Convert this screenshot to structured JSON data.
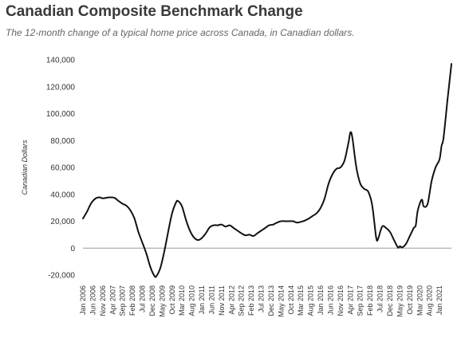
{
  "chart_data": {
    "type": "line",
    "title": "Canadian Composite Benchmark Change",
    "subtitle": "The 12-month change of a typical home price across Canada, in Canadian dollars.",
    "xlabel": "",
    "ylabel": "Canadian Dollars",
    "ylim": [
      -20000,
      140000
    ],
    "yticks": [
      -20000,
      0,
      20000,
      40000,
      60000,
      80000,
      100000,
      120000,
      140000
    ],
    "ytick_labels": [
      "-20,000",
      "0",
      "20,000",
      "40,000",
      "60,000",
      "80,000",
      "100,000",
      "120,000",
      "140,000"
    ],
    "xtick_labels": [
      "Jan 2006",
      "Jun 2006",
      "Nov 2006",
      "Apr 2007",
      "Sep 2007",
      "Feb 2008",
      "Jul 2008",
      "Dec 2008",
      "May 2009",
      "Oct 2009",
      "Mar 2010",
      "Aug 2010",
      "Jan 2011",
      "Jun 2011",
      "Nov 2011",
      "Apr 2012",
      "Sep 2012",
      "Feb 2013",
      "Jul 2013",
      "Dec 2013",
      "May 2014",
      "Oct 2014",
      "Mar 2015",
      "Aug 2015",
      "Jan 2016",
      "Jun 2016",
      "Nov 2016",
      "Apr 2017",
      "Sep 2017",
      "Feb 2018",
      "Jul 2018",
      "Dec 2018",
      "May 2019",
      "Oct 2019",
      "Mar 2020",
      "Aug 2020",
      "Jan 2021"
    ],
    "grid": false,
    "series": [
      {
        "color": "#111111",
        "points": [
          [
            "2006-01",
            22000
          ],
          [
            "2006-03",
            27000
          ],
          [
            "2006-05",
            33000
          ],
          [
            "2006-07",
            36500
          ],
          [
            "2006-09",
            37800
          ],
          [
            "2006-11",
            37000
          ],
          [
            "2007-01",
            37500
          ],
          [
            "2007-03",
            37800
          ],
          [
            "2007-05",
            37300
          ],
          [
            "2007-07",
            35000
          ],
          [
            "2007-09",
            33000
          ],
          [
            "2007-11",
            31500
          ],
          [
            "2008-01",
            28000
          ],
          [
            "2008-03",
            22000
          ],
          [
            "2008-05",
            12000
          ],
          [
            "2008-07",
            4000
          ],
          [
            "2008-09",
            -4000
          ],
          [
            "2008-11",
            -14000
          ],
          [
            "2009-01",
            -20500
          ],
          [
            "2009-02",
            -21000
          ],
          [
            "2009-04",
            -15000
          ],
          [
            "2009-06",
            -3000
          ],
          [
            "2009-08",
            12000
          ],
          [
            "2009-10",
            26000
          ],
          [
            "2009-12",
            34000
          ],
          [
            "2010-01",
            35000
          ],
          [
            "2010-03",
            31000
          ],
          [
            "2010-05",
            21000
          ],
          [
            "2010-07",
            13000
          ],
          [
            "2010-09",
            8000
          ],
          [
            "2010-11",
            6000
          ],
          [
            "2011-01",
            7500
          ],
          [
            "2011-03",
            11000
          ],
          [
            "2011-05",
            15500
          ],
          [
            "2011-07",
            17000
          ],
          [
            "2011-09",
            17000
          ],
          [
            "2011-11",
            17500
          ],
          [
            "2012-01",
            16000
          ],
          [
            "2012-03",
            17000
          ],
          [
            "2012-05",
            15000
          ],
          [
            "2012-07",
            13000
          ],
          [
            "2012-09",
            11000
          ],
          [
            "2012-11",
            9500
          ],
          [
            "2013-01",
            10000
          ],
          [
            "2013-03",
            9000
          ],
          [
            "2013-05",
            11000
          ],
          [
            "2013-07",
            13000
          ],
          [
            "2013-09",
            15000
          ],
          [
            "2013-11",
            17000
          ],
          [
            "2014-01",
            17500
          ],
          [
            "2014-03",
            19000
          ],
          [
            "2014-05",
            20000
          ],
          [
            "2014-07",
            20000
          ],
          [
            "2014-09",
            20000
          ],
          [
            "2014-11",
            20000
          ],
          [
            "2015-01",
            19000
          ],
          [
            "2015-03",
            19500
          ],
          [
            "2015-05",
            20500
          ],
          [
            "2015-07",
            22000
          ],
          [
            "2015-09",
            24000
          ],
          [
            "2015-11",
            26000
          ],
          [
            "2016-01",
            30000
          ],
          [
            "2016-03",
            37000
          ],
          [
            "2016-05",
            48000
          ],
          [
            "2016-07",
            55000
          ],
          [
            "2016-09",
            59000
          ],
          [
            "2016-11",
            60000
          ],
          [
            "2017-01",
            65000
          ],
          [
            "2017-03",
            78000
          ],
          [
            "2017-04",
            86000
          ],
          [
            "2017-05",
            82000
          ],
          [
            "2017-07",
            60000
          ],
          [
            "2017-09",
            48000
          ],
          [
            "2017-11",
            44000
          ],
          [
            "2018-01",
            42000
          ],
          [
            "2018-03",
            32000
          ],
          [
            "2018-05",
            8000
          ],
          [
            "2018-06",
            7000
          ],
          [
            "2018-08",
            16000
          ],
          [
            "2018-10",
            15000
          ],
          [
            "2018-12",
            12000
          ],
          [
            "2019-02",
            6000
          ],
          [
            "2019-04",
            500
          ],
          [
            "2019-05",
            1500
          ],
          [
            "2019-06",
            500
          ],
          [
            "2019-08",
            3000
          ],
          [
            "2019-10",
            9000
          ],
          [
            "2019-12",
            15000
          ],
          [
            "2020-01",
            17000
          ],
          [
            "2020-02",
            28000
          ],
          [
            "2020-04",
            36000
          ],
          [
            "2020-05",
            31000
          ],
          [
            "2020-07",
            33000
          ],
          [
            "2020-09",
            50000
          ],
          [
            "2020-11",
            60000
          ],
          [
            "2021-01",
            66000
          ],
          [
            "2021-02",
            76000
          ],
          [
            "2021-03",
            82000
          ],
          [
            "2021-05",
            110000
          ],
          [
            "2021-07",
            137000
          ]
        ]
      }
    ]
  }
}
